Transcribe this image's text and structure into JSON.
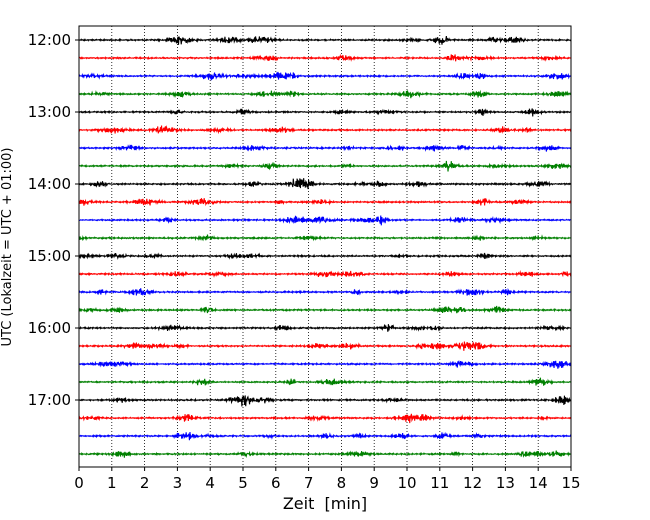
{
  "chart_data": {
    "type": "line",
    "title": "",
    "xlabel": "Zeit  [min]",
    "ylabel": "UTC (Lokalzeit = UTC + 01:00)",
    "xlim": [
      0,
      15
    ],
    "x_ticks": [
      "0",
      "1",
      "2",
      "3",
      "4",
      "5",
      "6",
      "7",
      "8",
      "9",
      "10",
      "11",
      "12",
      "13",
      "14",
      "15"
    ],
    "y_ticks": [
      "12:00",
      "13:00",
      "14:00",
      "15:00",
      "16:00",
      "17:00"
    ],
    "grid": "vertical dotted at each minute",
    "trace_colors": [
      "#000000",
      "#ff0000",
      "#0000ff",
      "#008000"
    ],
    "trace_start_times": [
      "12:00",
      "12:15",
      "12:30",
      "12:45",
      "13:00",
      "13:15",
      "13:30",
      "13:45",
      "14:00",
      "14:15",
      "14:30",
      "14:45",
      "15:00",
      "15:15",
      "15:30",
      "15:45",
      "16:00",
      "16:15",
      "16:30",
      "16:45",
      "17:00",
      "17:15",
      "17:30",
      "17:45"
    ]
  }
}
